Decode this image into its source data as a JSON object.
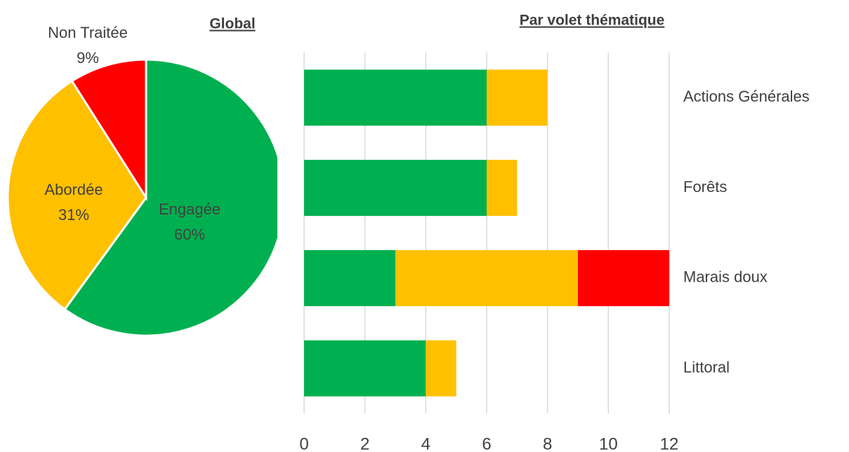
{
  "chart_data": [
    {
      "type": "pie",
      "title": "Global",
      "categories": [
        "Engagée",
        "Abordée",
        "Non Traitée"
      ],
      "values": [
        60,
        31,
        9
      ],
      "value_labels": [
        "60%",
        "31%",
        "9%"
      ],
      "colors": [
        "#00b050",
        "#ffc000",
        "#ff0000"
      ]
    },
    {
      "type": "stacked_barh",
      "title": "Par volet thématique",
      "categories": [
        "Actions Générales",
        "Forêts",
        "Marais doux",
        "Littoral"
      ],
      "series": [
        {
          "color": "#00b050",
          "values": [
            6,
            6,
            3,
            4
          ]
        },
        {
          "color": "#ffc000",
          "values": [
            2,
            1,
            6,
            1
          ]
        },
        {
          "color": "#ff0000",
          "values": [
            0,
            0,
            3,
            0
          ]
        }
      ],
      "xlim": [
        0,
        12
      ],
      "xticks": [
        0,
        2,
        4,
        6,
        8,
        10,
        12
      ],
      "grid": true
    }
  ]
}
